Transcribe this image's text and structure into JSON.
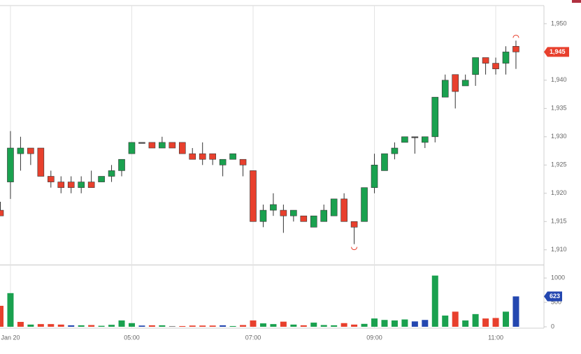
{
  "chart_data": {
    "type": "candlestick",
    "categories": [
      null,
      "Jan 20",
      null,
      null,
      null,
      null,
      null,
      null,
      null,
      null,
      null,
      null,
      null,
      "05:00",
      null,
      null,
      null,
      null,
      null,
      null,
      null,
      null,
      null,
      null,
      null,
      "07:00",
      null,
      null,
      null,
      null,
      null,
      null,
      null,
      null,
      null,
      null,
      null,
      "09:00",
      null,
      null,
      null,
      null,
      null,
      null,
      null,
      null,
      null,
      null,
      null,
      "11:00",
      null,
      null
    ],
    "open": [
      1917,
      1922,
      1927,
      1928,
      1928,
      1923,
      1922,
      1922,
      1921,
      1922,
      1922,
      1923,
      1924,
      1927,
      1929,
      1929,
      1928,
      1929,
      1929,
      1927,
      1927,
      1927,
      1925,
      1926,
      1926,
      1924,
      1915,
      1917,
      1917,
      1916,
      1916,
      1914,
      1915,
      1916,
      1919,
      1915,
      1915,
      1921,
      1924,
      1927,
      1929,
      1930,
      1929,
      1930,
      1937,
      1941,
      1939,
      1941,
      1944,
      1943,
      1943,
      1946
    ],
    "high": [
      1918.5,
      1931,
      1930,
      1928,
      1928,
      1924,
      1923,
      1923,
      1923,
      1924,
      1923,
      1925,
      1926,
      1929,
      1929,
      1929,
      1930,
      1929,
      1929,
      1928,
      1929,
      1927,
      1926,
      1927,
      1926,
      1924,
      1918,
      1920,
      1918,
      1917,
      1916,
      1916,
      1918,
      1919,
      1920,
      1915,
      1921,
      1927,
      1927,
      1929,
      1930,
      1930,
      1930,
      1937,
      1941,
      1941,
      1941,
      1944,
      1944,
      1944,
      1946,
      1947
    ],
    "low": [
      1916,
      1919,
      1924,
      1925,
      1923,
      1921,
      1920,
      1920,
      1920,
      1921,
      1922,
      1922,
      1923,
      1927,
      1929,
      1928,
      1928,
      1928,
      1927,
      1926,
      1925,
      1925,
      1923,
      1926,
      1923,
      1915,
      1914,
      1916,
      1913,
      1915,
      1915,
      1914,
      1915,
      1916,
      1915,
      1911,
      1915,
      1920,
      1924,
      1926,
      1929,
      1927,
      1928,
      1929,
      1937,
      1935,
      1939,
      1939,
      1941,
      1941,
      1941,
      1942
    ],
    "close": [
      1916,
      1928,
      1928,
      1927,
      1923,
      1922,
      1921,
      1921,
      1922,
      1921,
      1923,
      1924,
      1926,
      1929,
      1929,
      1928,
      1929,
      1928,
      1927,
      1926,
      1926,
      1926,
      1926,
      1927,
      1925,
      1915,
      1917,
      1918,
      1916,
      1917,
      1915,
      1916,
      1917,
      1919,
      1915,
      1914,
      1921,
      1925,
      1927,
      1928,
      1930,
      1930,
      1930,
      1937,
      1940,
      1938,
      1940,
      1944,
      1943,
      1942,
      1945,
      1945
    ],
    "up_color": "#1aa14f",
    "down_color": "#e8402d",
    "flat_color": "#555555",
    "ylim": [
      1907.5,
      1953.2
    ],
    "yticks": [
      {
        "value": 1910,
        "label": "1,910"
      },
      {
        "value": 1915,
        "label": "1,915"
      },
      {
        "value": 1920,
        "label": "1,920"
      },
      {
        "value": 1925,
        "label": "1,925"
      },
      {
        "value": 1930,
        "label": "1,930"
      },
      {
        "value": 1935,
        "label": "1,935"
      },
      {
        "value": 1940,
        "label": "1,940"
      },
      {
        "value": 1945,
        "label": "1,945"
      },
      {
        "value": 1950,
        "label": "1,950"
      }
    ],
    "price_marker": {
      "value": 1945,
      "label": "1,945"
    },
    "grid": true,
    "volume": {
      "values": [
        430,
        690,
        100,
        45,
        55,
        55,
        45,
        30,
        30,
        35,
        20,
        40,
        130,
        75,
        25,
        30,
        30,
        15,
        15,
        25,
        25,
        25,
        30,
        15,
        35,
        130,
        70,
        55,
        105,
        45,
        30,
        85,
        35,
        30,
        75,
        45,
        60,
        170,
        140,
        130,
        150,
        110,
        140,
        1050,
        230,
        310,
        130,
        260,
        170,
        180,
        310,
        623
      ],
      "colors": [
        "#e8402d",
        "#1aa14f",
        "#e8402d",
        "#1aa14f",
        "#e8402d",
        "#e8402d",
        "#e8402d",
        "#2447b0",
        "#1aa14f",
        "#e8402d",
        "#1aa14f",
        "#1aa14f",
        "#1aa14f",
        "#1aa14f",
        "#2447b0",
        "#e8402d",
        "#1aa14f",
        "#888888",
        "#e8402d",
        "#e8402d",
        "#e8402d",
        "#e8402d",
        "#2447b0",
        "#1aa14f",
        "#e8402d",
        "#e8402d",
        "#1aa14f",
        "#1aa14f",
        "#e8402d",
        "#1aa14f",
        "#e8402d",
        "#1aa14f",
        "#1aa14f",
        "#1aa14f",
        "#e8402d",
        "#e8402d",
        "#1aa14f",
        "#1aa14f",
        "#1aa14f",
        "#1aa14f",
        "#1aa14f",
        "#2447b0",
        "#2447b0",
        "#1aa14f",
        "#1aa14f",
        "#e8402d",
        "#1aa14f",
        "#1aa14f",
        "#e8402d",
        "#e8402d",
        "#1aa14f",
        "#2447b0"
      ],
      "ylim": [
        0,
        1260
      ],
      "yticks": [
        0,
        500,
        1000
      ]
    }
  }
}
